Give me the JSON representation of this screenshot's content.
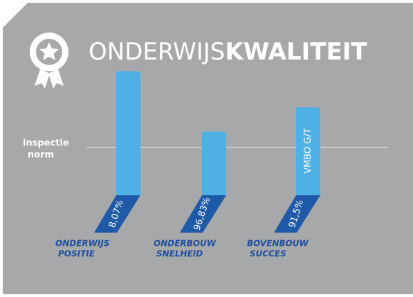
{
  "title": {
    "light": "ONDERWIJS",
    "bold": "KWALITEIT"
  },
  "reference": {
    "lines": [
      "inspectie",
      "norm"
    ]
  },
  "bars": [
    {
      "label": [
        "ONDERWIJS",
        "POSITIE"
      ],
      "value": "8,07%"
    },
    {
      "label": [
        "ONDERBOUW",
        "SNELHEID"
      ],
      "value": "96,83%"
    },
    {
      "label": [
        "BOVENBOUW",
        "SUCCES"
      ],
      "value": "91,5%",
      "note": "VMBO G/T"
    }
  ]
}
